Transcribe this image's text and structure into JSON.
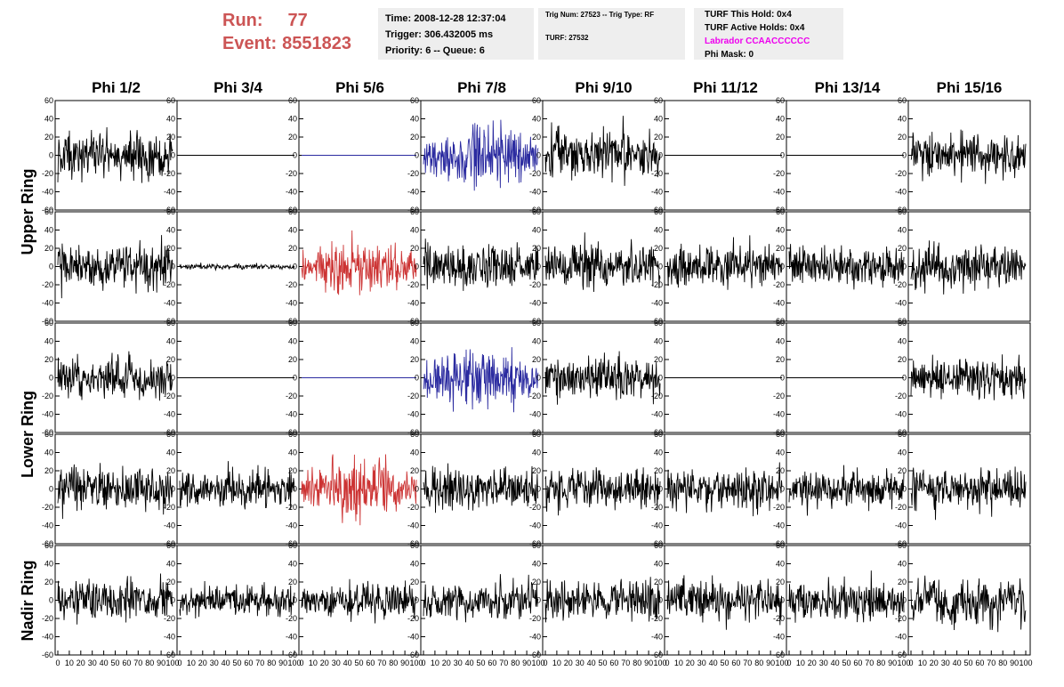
{
  "header": {
    "run_label": "Run:",
    "run_value": "77",
    "event_label": "Event:",
    "event_value": "8551823"
  },
  "info_time": {
    "time": "Time: 2008-12-28 12:37:04",
    "trigger": "Trigger: 306.432005 ms",
    "priority": "Priority: 6 -- Queue: 6"
  },
  "info_trig": {
    "trig": "Trig Num: 27523 -- Trig Type: RF",
    "turf": "TURF: 27532"
  },
  "info_turf": {
    "this_hold": "TURF This Hold: 0x4",
    "active_holds": "TURF Active Holds: 0x4",
    "labrador": "Labrador CCAACCCCCC",
    "phi_mask": "Phi Mask: 0"
  },
  "colors": {
    "trace": "#000000",
    "triggered_pol_a": "#2b2ba0",
    "triggered_pol_b": "#cc3333",
    "labrador": "#ee00ee",
    "run_text": "#cc5555",
    "info_bg": "#eeeeee"
  },
  "chart_data": {
    "type": "line",
    "columns": [
      "Phi 1/2",
      "Phi 3/4",
      "Phi 5/6",
      "Phi 7/8",
      "Phi 9/10",
      "Phi 11/12",
      "Phi 13/14",
      "Phi 15/16"
    ],
    "rings": [
      "Upper Ring",
      "Lower Ring",
      "Nadir Ring"
    ],
    "ylim": [
      -60,
      60
    ],
    "y_ticks": [
      "-60",
      "-40",
      "-20",
      "0",
      "20",
      "40",
      "60"
    ],
    "xlim": [
      0,
      100
    ],
    "x_ticks": [
      "0",
      "10",
      "20",
      "30",
      "40",
      "50",
      "60",
      "70",
      "80",
      "90",
      "100"
    ],
    "rows": [
      [
        {
          "amp": 18,
          "color": "trace"
        },
        {
          "amp": 0,
          "color": "trace"
        },
        {
          "amp": 0,
          "color": "triggered_pol_a"
        },
        {
          "amp": 22,
          "color": "triggered_pol_a"
        },
        {
          "amp": 20,
          "color": "trace"
        },
        {
          "amp": 0,
          "color": "trace"
        },
        {
          "amp": 0,
          "color": "trace"
        },
        {
          "amp": 18,
          "color": "trace"
        }
      ],
      [
        {
          "amp": 17,
          "color": "trace"
        },
        {
          "amp": 2,
          "color": "trace"
        },
        {
          "amp": 18,
          "color": "triggered_pol_b"
        },
        {
          "amp": 17,
          "color": "trace"
        },
        {
          "amp": 18,
          "color": "trace"
        },
        {
          "amp": 16,
          "color": "trace"
        },
        {
          "amp": 15,
          "color": "trace"
        },
        {
          "amp": 17,
          "color": "trace"
        }
      ],
      [
        {
          "amp": 17,
          "color": "trace"
        },
        {
          "amp": 0,
          "color": "trace"
        },
        {
          "amp": 0,
          "color": "triggered_pol_a"
        },
        {
          "amp": 22,
          "color": "triggered_pol_a"
        },
        {
          "amp": 16,
          "color": "trace"
        },
        {
          "amp": 0,
          "color": "trace"
        },
        {
          "amp": 0,
          "color": "trace"
        },
        {
          "amp": 15,
          "color": "trace"
        }
      ],
      [
        {
          "amp": 17,
          "color": "trace"
        },
        {
          "amp": 15,
          "color": "trace"
        },
        {
          "amp": 20,
          "color": "triggered_pol_b"
        },
        {
          "amp": 17,
          "color": "trace"
        },
        {
          "amp": 17,
          "color": "trace"
        },
        {
          "amp": 16,
          "color": "trace"
        },
        {
          "amp": 15,
          "color": "trace"
        },
        {
          "amp": 16,
          "color": "trace"
        }
      ],
      [
        {
          "amp": 15,
          "color": "trace"
        },
        {
          "amp": 12,
          "color": "trace"
        },
        {
          "amp": 13,
          "color": "trace"
        },
        {
          "amp": 15,
          "color": "trace"
        },
        {
          "amp": 16,
          "color": "trace"
        },
        {
          "amp": 17,
          "color": "trace"
        },
        {
          "amp": 15,
          "color": "trace"
        },
        {
          "amp": 18,
          "color": "trace"
        }
      ]
    ]
  }
}
